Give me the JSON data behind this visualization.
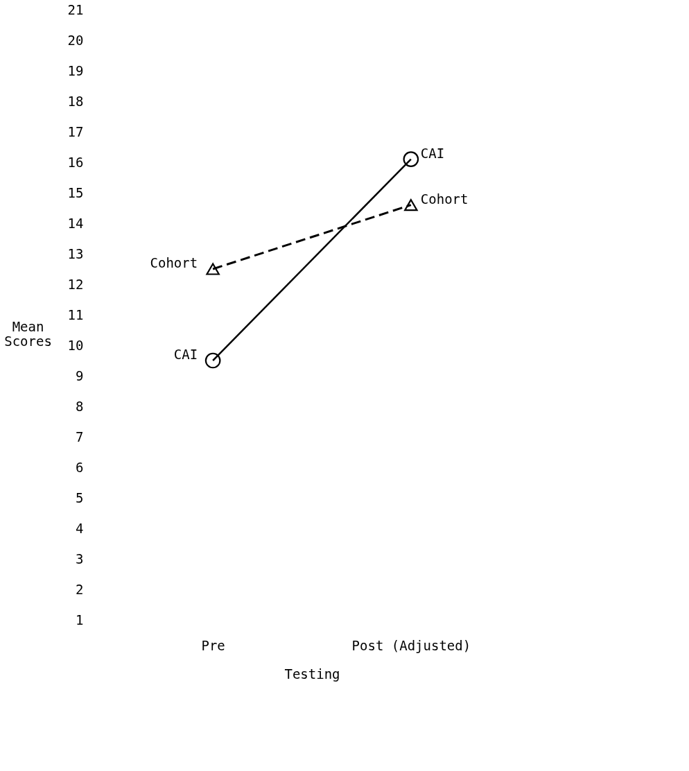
{
  "chart_data": {
    "type": "line",
    "xlabel": "Testing",
    "ylabel": "Mean Scores",
    "categories": [
      "Pre",
      "Post (Adjusted)"
    ],
    "series": [
      {
        "name": "CAI",
        "color": "#000000",
        "values": [
          9.5,
          16.1
        ],
        "marker": "circle",
        "line_style": "solid"
      },
      {
        "name": "Cohort",
        "color": "#000000",
        "values": [
          12.5,
          14.6
        ],
        "marker": "triangle",
        "line_style": "dashed"
      }
    ],
    "ylim": [
      1,
      21
    ],
    "yticks": [
      1,
      2,
      3,
      4,
      5,
      6,
      7,
      8,
      9,
      10,
      11,
      12,
      13,
      14,
      15,
      16,
      17,
      18,
      19,
      20,
      21
    ],
    "grid": false,
    "legend": false
  }
}
